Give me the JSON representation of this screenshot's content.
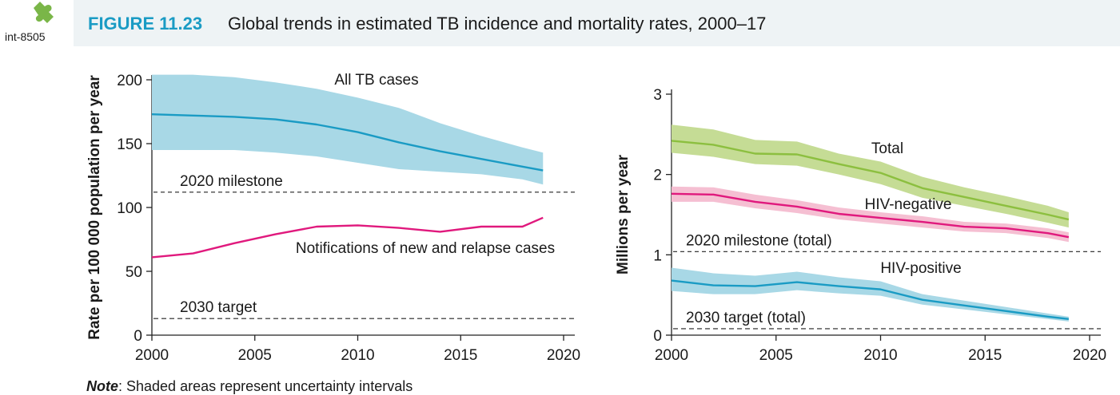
{
  "header": {
    "badge_id": "int-8505",
    "figure_label": "FIGURE 11.23",
    "figure_title": "Global trends in estimated TB incidence and mortality rates, 2000–17"
  },
  "note": {
    "label": "Note",
    "text": ": Shaded areas represent uncertainty intervals"
  },
  "colors": {
    "accent": "#1a9bc4",
    "badge": "#7ab648",
    "incidence_band": "#a8d8e6",
    "incidence_line": "#1a9bc4",
    "notifications": "#e0197d",
    "total_band": "#c5dc95",
    "total_line": "#8cbf3f",
    "hivneg_band": "#f5bfd2",
    "hivneg_line": "#e0197d",
    "hivpos_band": "#a8d8e6",
    "hivpos_line": "#1a9bc4"
  },
  "chart_data": [
    {
      "type": "line",
      "ylabel": "Rate per 100 000 population per year",
      "xlim": [
        2000,
        2020
      ],
      "ylim": [
        0,
        200
      ],
      "xticks": [
        "2000",
        "2005",
        "2010",
        "2015",
        "2020"
      ],
      "yticks": [
        "0",
        "50",
        "100",
        "150",
        "200"
      ],
      "x": [
        2000,
        2002,
        2004,
        2006,
        2008,
        2010,
        2012,
        2014,
        2016,
        2018,
        2019
      ],
      "series": [
        {
          "name": "All TB cases",
          "values": [
            173,
            172,
            171,
            169,
            165,
            159,
            151,
            144,
            138,
            132,
            129
          ],
          "lower": [
            145,
            145,
            145,
            143,
            140,
            135,
            130,
            128,
            126,
            122,
            118
          ],
          "upper": [
            204,
            204,
            202,
            198,
            193,
            186,
            178,
            166,
            156,
            147,
            143
          ]
        },
        {
          "name": "Notifications of new and relapse cases",
          "values": [
            61,
            64,
            72,
            79,
            85,
            86,
            84,
            81,
            85,
            85,
            92
          ]
        }
      ],
      "reference_lines": [
        {
          "label": "2020 milestone",
          "value": 112
        },
        {
          "label": "2030 target",
          "value": 13
        }
      ]
    },
    {
      "type": "line",
      "ylabel": "Millions per year",
      "xlim": [
        2000,
        2020
      ],
      "ylim": [
        0,
        3
      ],
      "xticks": [
        "2000",
        "2005",
        "2010",
        "2015",
        "2020"
      ],
      "yticks": [
        "0",
        "1",
        "2",
        "3"
      ],
      "x": [
        2000,
        2002,
        2004,
        2006,
        2008,
        2010,
        2012,
        2014,
        2016,
        2018,
        2019
      ],
      "series": [
        {
          "name": "Total",
          "values": [
            2.42,
            2.37,
            2.26,
            2.25,
            2.13,
            2.02,
            1.83,
            1.72,
            1.61,
            1.5,
            1.44
          ],
          "lower": [
            2.27,
            2.22,
            2.13,
            2.11,
            2.0,
            1.88,
            1.71,
            1.61,
            1.51,
            1.4,
            1.34
          ],
          "upper": [
            2.62,
            2.56,
            2.43,
            2.41,
            2.26,
            2.16,
            1.97,
            1.84,
            1.73,
            1.61,
            1.53
          ]
        },
        {
          "name": "HIV-negative",
          "values": [
            1.76,
            1.75,
            1.66,
            1.6,
            1.51,
            1.46,
            1.41,
            1.35,
            1.33,
            1.27,
            1.22
          ],
          "lower": [
            1.66,
            1.66,
            1.58,
            1.52,
            1.44,
            1.39,
            1.34,
            1.29,
            1.27,
            1.21,
            1.16
          ],
          "upper": [
            1.85,
            1.84,
            1.75,
            1.68,
            1.59,
            1.53,
            1.48,
            1.41,
            1.39,
            1.33,
            1.28
          ]
        },
        {
          "name": "HIV-positive",
          "values": [
            0.68,
            0.62,
            0.61,
            0.66,
            0.61,
            0.57,
            0.44,
            0.37,
            0.3,
            0.23,
            0.2
          ],
          "lower": [
            0.55,
            0.51,
            0.51,
            0.56,
            0.52,
            0.49,
            0.38,
            0.32,
            0.26,
            0.2,
            0.17
          ],
          "upper": [
            0.84,
            0.77,
            0.74,
            0.79,
            0.72,
            0.67,
            0.51,
            0.43,
            0.35,
            0.27,
            0.23
          ]
        }
      ],
      "reference_lines": [
        {
          "label": "2020 milestone (total)",
          "value": 1.04
        },
        {
          "label": "2030 target (total)",
          "value": 0.08
        }
      ]
    }
  ]
}
